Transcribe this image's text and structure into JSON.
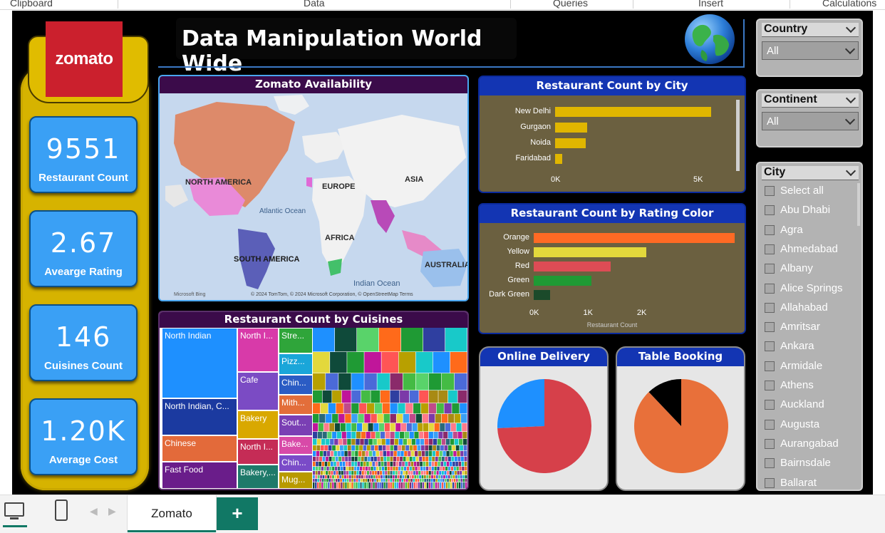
{
  "ribbon": {
    "groups": [
      "Clipboard",
      "Data",
      "Queries",
      "Insert",
      "Calculations"
    ]
  },
  "dashboard": {
    "title": "Data Manipulation World Wide",
    "logo_text": "zomato",
    "kpis": [
      {
        "value": "9551",
        "label": "Restaurant Count"
      },
      {
        "value": "2.67",
        "label": "Avearge Rating"
      },
      {
        "value": "146",
        "label": "Cuisines Count"
      },
      {
        "value": "1.20K",
        "label": "Average Cost"
      }
    ]
  },
  "map": {
    "title": "Zomato Availability",
    "labels": [
      "NORTH AMERICA",
      "EUROPE",
      "ASIA",
      "Atlantic Ocean",
      "AFRICA",
      "SOUTH AMERICA",
      "Indian Ocean",
      "AUSTRALIA"
    ],
    "attribution": "© 2024 TomTom, © 2024 Microsoft Corporation, © OpenStreetMap  Terms",
    "bing": "Microsoft Bing"
  },
  "treemap": {
    "title": "Restaurant Count by Cuisines",
    "cells": [
      "North Indian",
      "North I...",
      "Stre...",
      "Pizz...",
      "Cafe",
      "Chin...",
      "Mith...",
      "North Indian, C...",
      "Bakery",
      "Sout...",
      "Chinese",
      "North I...",
      "Bake...",
      "Fast Food",
      "Chin...",
      "Bakery,...",
      "Mug..."
    ]
  },
  "city_chart": {
    "title": "Restaurant Count by City",
    "categories": [
      "New Delhi",
      "Gurgaon",
      "Noida",
      "Faridabad"
    ],
    "values": [
      5473,
      1118,
      1080,
      251
    ],
    "ticks": [
      "0K",
      "5K"
    ],
    "xlim": [
      0,
      6000
    ],
    "color": "#e0b600"
  },
  "rating_chart": {
    "title": "Restaurant Count by Rating Color",
    "categories": [
      "Orange",
      "Yellow",
      "Red",
      "Green",
      "Dark Green"
    ],
    "values": [
      3737,
      2100,
      1434,
      1079,
      301
    ],
    "colors": [
      "#ff6a24",
      "#e3d83c",
      "#dd4c55",
      "#1f9a34",
      "#1b4a2a"
    ],
    "ticks": [
      "0K",
      "1K",
      "2K"
    ],
    "xlabel": "Restaurant Count",
    "xlim": [
      0,
      2500
    ]
  },
  "online_delivery": {
    "title": "Online Delivery",
    "values": [
      74.3,
      25.7
    ],
    "colors": [
      "#d6404a",
      "#1e90ff"
    ]
  },
  "table_booking": {
    "title": "Table Booking",
    "values": [
      87.9,
      12.1
    ],
    "colors": [
      "#e8703a",
      "#000000"
    ]
  },
  "slicers": {
    "country": {
      "title": "Country",
      "value": "All"
    },
    "continent": {
      "title": "Continent",
      "value": "All"
    },
    "city": {
      "title": "City",
      "items": [
        "Select all",
        "Abu Dhabi",
        "Agra",
        "Ahmedabad",
        "Albany",
        "Alice Springs",
        "Allahabad",
        "Amritsar",
        "Ankara",
        "Armidale",
        "Athens",
        "Auckland",
        "Augusta",
        "Aurangabad",
        "Bairnsdale",
        "Ballarat"
      ]
    }
  },
  "tabs": {
    "active": "Zomato",
    "add": "+"
  }
}
